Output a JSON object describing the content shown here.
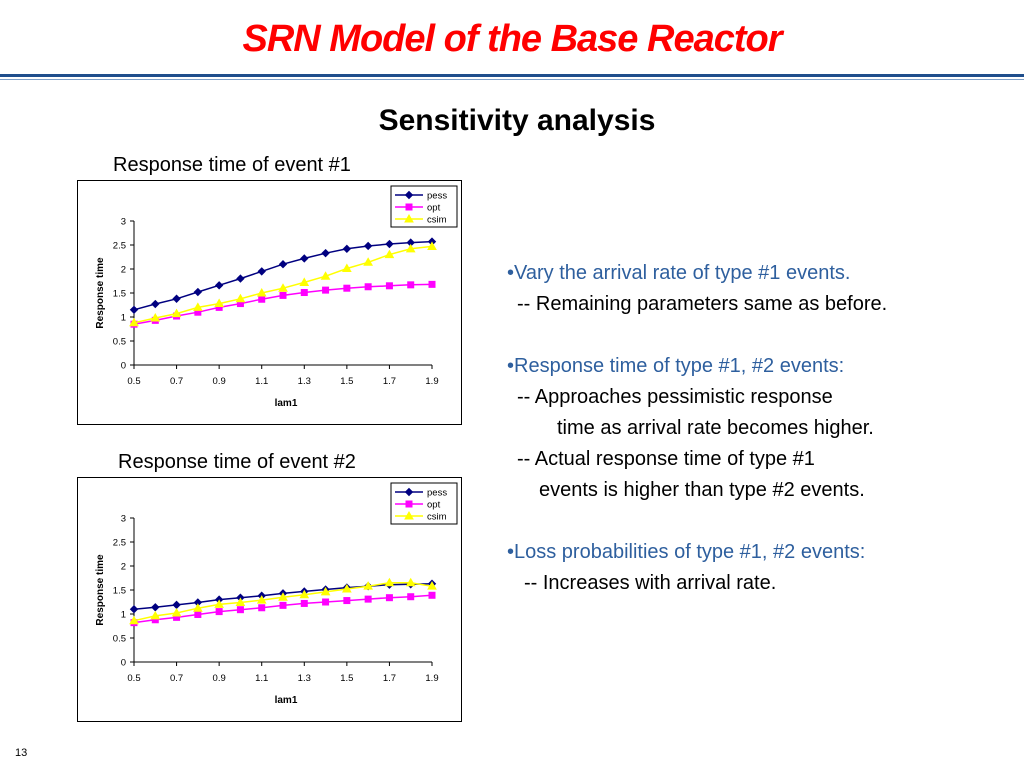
{
  "slide": {
    "title": "SRN Model of the Base Reactor",
    "subtitle": "Sensitivity analysis",
    "page_number": "13",
    "colors": {
      "title": "#ff0000",
      "rule": "#1f4e8c",
      "bullet_accent": "#2e5f9e"
    }
  },
  "captions": {
    "chart1": "Response time of event #1",
    "chart2": "Response time of event #2"
  },
  "bullets": {
    "b1": "•Vary the arrival rate of type #1 events.",
    "b1_sub": "-- Remaining parameters same as before.",
    "b2": "•Response time of type #1, #2 events:",
    "b2_sub1a": "-- Approaches pessimistic response",
    "b2_sub1b": "time as arrival rate becomes higher.",
    "b2_sub2a": "-- Actual response time of type #1",
    "b2_sub2b": "events is higher than type #2 events.",
    "b3": "•Loss probabilities of type #1, #2 events:",
    "b3_sub": "-- Increases with arrival rate."
  },
  "chart_data": [
    {
      "type": "line",
      "xlabel": "lam1",
      "ylabel": "Response time",
      "xlim": [
        0.5,
        1.9
      ],
      "ylim": [
        0,
        3
      ],
      "xticks": [
        "0.5",
        "0.7",
        "0.9",
        "1.1",
        "1.3",
        "1.5",
        "1.7",
        "1.9"
      ],
      "yticks": [
        "0",
        "0.5",
        "1",
        "1.5",
        "2",
        "2.5",
        "3"
      ],
      "legend_position": "top-right",
      "x": [
        0.5,
        0.6,
        0.7,
        0.8,
        0.9,
        1.0,
        1.1,
        1.2,
        1.3,
        1.4,
        1.5,
        1.6,
        1.7,
        1.8,
        1.9
      ],
      "series": [
        {
          "name": "pess",
          "color": "#000080",
          "marker": "diamond",
          "values": [
            1.15,
            1.27,
            1.38,
            1.52,
            1.66,
            1.8,
            1.95,
            2.1,
            2.22,
            2.33,
            2.42,
            2.48,
            2.52,
            2.55,
            2.57
          ]
        },
        {
          "name": "opt",
          "color": "#ff00ff",
          "marker": "square",
          "values": [
            0.85,
            0.93,
            1.02,
            1.1,
            1.2,
            1.28,
            1.37,
            1.45,
            1.51,
            1.56,
            1.6,
            1.63,
            1.65,
            1.67,
            1.68
          ]
        },
        {
          "name": "csim",
          "color": "#ffff00",
          "marker": "triangle",
          "values": [
            0.88,
            0.98,
            1.07,
            1.2,
            1.28,
            1.38,
            1.5,
            1.6,
            1.72,
            1.85,
            2.01,
            2.14,
            2.3,
            2.42,
            2.47
          ]
        }
      ]
    },
    {
      "type": "line",
      "xlabel": "lam1",
      "ylabel": "Response time",
      "xlim": [
        0.5,
        1.9
      ],
      "ylim": [
        0,
        3
      ],
      "xticks": [
        "0.5",
        "0.7",
        "0.9",
        "1.1",
        "1.3",
        "1.5",
        "1.7",
        "1.9"
      ],
      "yticks": [
        "0",
        "0.5",
        "1",
        "1.5",
        "2",
        "2.5",
        "3"
      ],
      "legend_position": "top-right",
      "x": [
        0.5,
        0.6,
        0.7,
        0.8,
        0.9,
        1.0,
        1.1,
        1.2,
        1.3,
        1.4,
        1.5,
        1.6,
        1.7,
        1.8,
        1.9
      ],
      "series": [
        {
          "name": "pess",
          "color": "#000080",
          "marker": "diamond",
          "values": [
            1.1,
            1.14,
            1.19,
            1.24,
            1.3,
            1.34,
            1.38,
            1.43,
            1.47,
            1.51,
            1.55,
            1.58,
            1.61,
            1.62,
            1.63
          ]
        },
        {
          "name": "opt",
          "color": "#ff00ff",
          "marker": "square",
          "values": [
            0.82,
            0.88,
            0.93,
            0.99,
            1.05,
            1.09,
            1.13,
            1.18,
            1.22,
            1.25,
            1.28,
            1.31,
            1.34,
            1.36,
            1.39
          ]
        },
        {
          "name": "csim",
          "color": "#ffff00",
          "marker": "triangle",
          "values": [
            0.86,
            0.96,
            1.02,
            1.12,
            1.2,
            1.24,
            1.29,
            1.35,
            1.4,
            1.46,
            1.52,
            1.58,
            1.65,
            1.65,
            1.58
          ]
        }
      ]
    }
  ]
}
